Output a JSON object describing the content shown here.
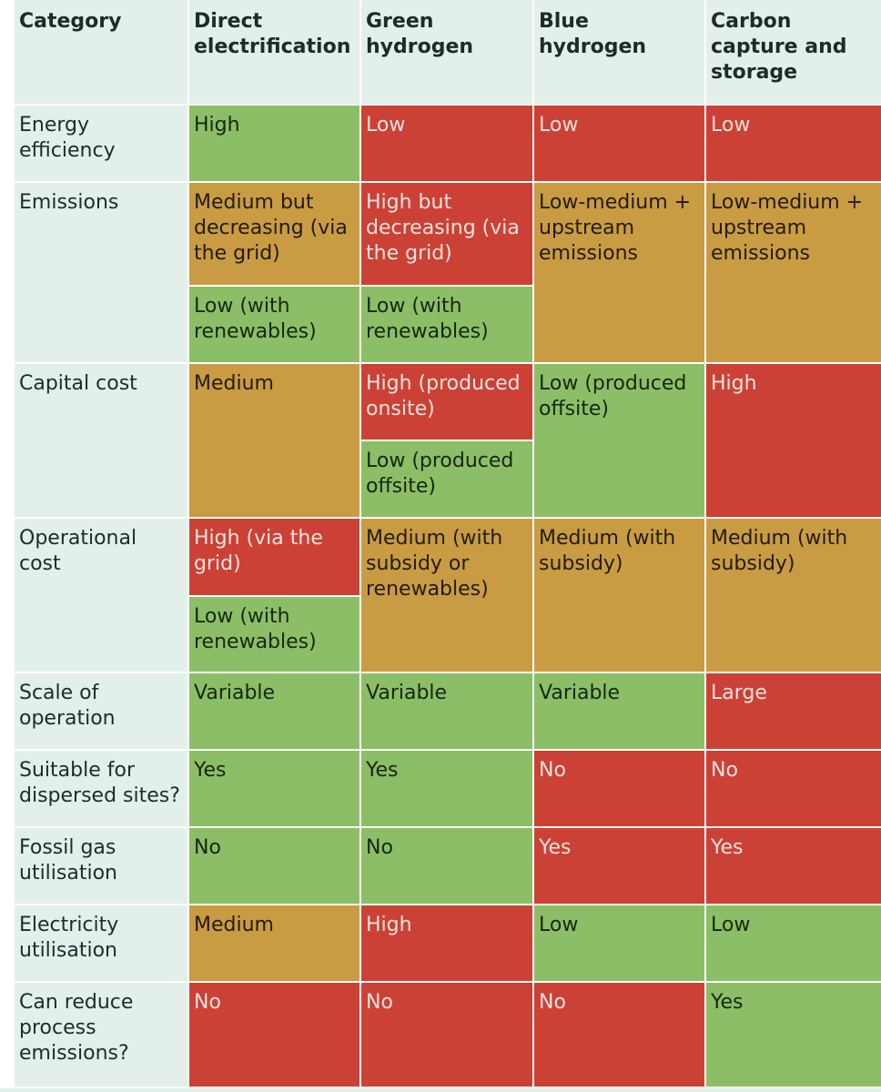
{
  "colors": {
    "green": "#8cbe67",
    "red": "#cc4135",
    "amber": "#c99c43",
    "header_bg": "#e3f0e9"
  },
  "headers": [
    "Category",
    "Direct electrification",
    "Green hydrogen",
    "Blue hydrogen",
    "Carbon capture and storage"
  ],
  "rows": [
    {
      "category": "Energy efficiency",
      "cells": [
        {
          "text": "High",
          "rating": "green"
        },
        {
          "text": "Low",
          "rating": "red"
        },
        {
          "text": "Low",
          "rating": "red"
        },
        {
          "text": "Low",
          "rating": "red"
        }
      ]
    },
    {
      "category": "Emissions",
      "cells": [
        {
          "text": "Medium but decreasing (via the grid)",
          "rating": "amber",
          "alt_text": "Low (with renewables)",
          "alt_rating": "green"
        },
        {
          "text": "High but decreasing (via the grid)",
          "rating": "red",
          "alt_text": "Low (with renewables)",
          "alt_rating": "green"
        },
        {
          "text": "Low-medium + upstream emissions",
          "rating": "amber"
        },
        {
          "text": "Low-medium + upstream emissions",
          "rating": "amber"
        }
      ]
    },
    {
      "category": "Capital cost",
      "cells": [
        {
          "text": "Medium",
          "rating": "amber"
        },
        {
          "text": "High (produced onsite)",
          "rating": "red",
          "alt_text": "Low (produced offsite)",
          "alt_rating": "green"
        },
        {
          "text": "Low (produced offsite)",
          "rating": "green"
        },
        {
          "text": "High",
          "rating": "red"
        }
      ]
    },
    {
      "category": "Operational cost",
      "cells": [
        {
          "text": "High (via the grid)",
          "rating": "red",
          "alt_text": "Low (with renewables)",
          "alt_rating": "green"
        },
        {
          "text": "Medium (with subsidy or renewables)",
          "rating": "amber"
        },
        {
          "text": "Medium (with subsidy)",
          "rating": "amber"
        },
        {
          "text": "Medium (with subsidy)",
          "rating": "amber"
        }
      ]
    },
    {
      "category": "Scale of operation",
      "cells": [
        {
          "text": "Variable",
          "rating": "green"
        },
        {
          "text": "Variable",
          "rating": "green"
        },
        {
          "text": "Variable",
          "rating": "green"
        },
        {
          "text": "Large",
          "rating": "red"
        }
      ]
    },
    {
      "category": "Suitable for dispersed sites?",
      "cells": [
        {
          "text": "Yes",
          "rating": "green"
        },
        {
          "text": "Yes",
          "rating": "green"
        },
        {
          "text": "No",
          "rating": "red"
        },
        {
          "text": "No",
          "rating": "red"
        }
      ]
    },
    {
      "category": "Fossil gas utilisation",
      "cells": [
        {
          "text": "No",
          "rating": "green"
        },
        {
          "text": "No",
          "rating": "green"
        },
        {
          "text": "Yes",
          "rating": "red"
        },
        {
          "text": "Yes",
          "rating": "red"
        }
      ]
    },
    {
      "category": "Electricity utilisation",
      "cells": [
        {
          "text": "Medium",
          "rating": "amber"
        },
        {
          "text": "High",
          "rating": "red"
        },
        {
          "text": "Low",
          "rating": "green"
        },
        {
          "text": "Low",
          "rating": "green"
        }
      ]
    },
    {
      "category": "Can reduce process emissions?",
      "cells": [
        {
          "text": "No",
          "rating": "red"
        },
        {
          "text": "No",
          "rating": "red"
        },
        {
          "text": "No",
          "rating": "red"
        },
        {
          "text": "Yes",
          "rating": "green"
        }
      ]
    }
  ]
}
